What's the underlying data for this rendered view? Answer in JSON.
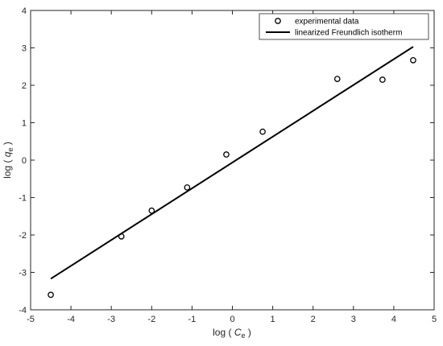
{
  "chart_data": {
    "type": "scatter",
    "xlabel": {
      "prefix": "log ( ",
      "var": "C",
      "sub": "e",
      "suffix": " )"
    },
    "ylabel": {
      "prefix": "log ( ",
      "var": "q",
      "sub": "e",
      "suffix": " )"
    },
    "xlim": [
      -5,
      5
    ],
    "ylim": [
      -4,
      4
    ],
    "xticks": [
      -5,
      -4,
      -3,
      -2,
      -1,
      0,
      1,
      2,
      3,
      4,
      5
    ],
    "yticks": [
      -4,
      -3,
      -2,
      -1,
      0,
      1,
      2,
      3,
      4
    ],
    "xtick_labels": [
      "-5",
      "-4",
      "-3",
      "-2",
      "-1",
      "0",
      "1",
      "2",
      "3",
      "4",
      "5"
    ],
    "ytick_labels": [
      "-4",
      "-3",
      "-2",
      "-1",
      "0",
      "1",
      "2",
      "3",
      "4"
    ],
    "grid": false,
    "legend_position": "top-right",
    "series": [
      {
        "name": "experimental data",
        "kind": "scatter",
        "marker": "open-circle",
        "color": "#000000",
        "x": [
          -4.5,
          -2.75,
          -2.0,
          -1.12,
          -0.15,
          0.75,
          2.6,
          3.72,
          4.48
        ],
        "y": [
          -3.6,
          -2.04,
          -1.35,
          -0.73,
          0.15,
          0.76,
          2.17,
          2.15,
          2.67
        ]
      },
      {
        "name": "linearized Freundlich isotherm",
        "kind": "line",
        "color": "#000000",
        "x": [
          -4.5,
          4.48
        ],
        "y": [
          -3.17,
          3.03
        ]
      }
    ]
  }
}
